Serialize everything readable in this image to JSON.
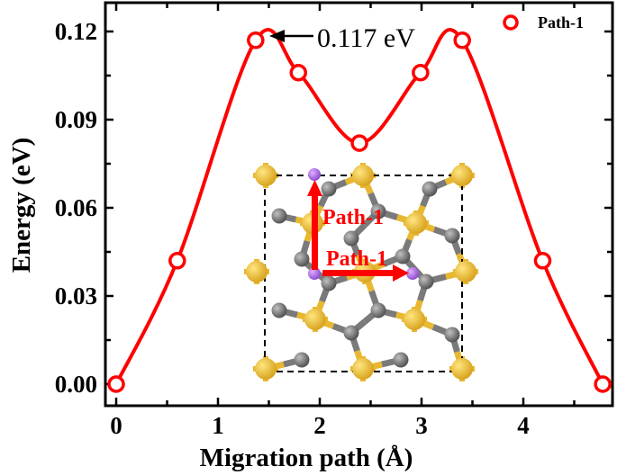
{
  "chart_data": {
    "type": "line",
    "title": "",
    "xlabel": "Migration path (Å)",
    "ylabel": "Energy (eV)",
    "xlim": [
      -0.1,
      4.88
    ],
    "ylim": [
      -0.0075,
      0.1295
    ],
    "x_ticks": [
      "0",
      "1",
      "2",
      "3",
      "4"
    ],
    "y_ticks": [
      "0.00",
      "0.03",
      "0.06",
      "0.09",
      "0.12"
    ],
    "grid": false,
    "legend_position": "upper right",
    "series": [
      {
        "name": "Path-1",
        "color": "#ff0000",
        "marker": "open-circle",
        "smooth": true,
        "x": [
          0.0,
          0.6,
          1.37,
          1.79,
          2.39,
          2.99,
          3.4,
          4.19,
          4.78
        ],
        "values": [
          0.0,
          0.042,
          0.117,
          0.106,
          0.082,
          0.106,
          0.117,
          0.042,
          0.0
        ]
      }
    ],
    "annotations": [
      {
        "text": "0.117 eV",
        "points_to": [
          1.37,
          0.117
        ],
        "arrow": true
      }
    ],
    "inset": {
      "description": "Atomic structure top view with dashed unit cell; red arrows mark migration paths",
      "labels": [
        "Path-1",
        "Path-1"
      ],
      "atom_colors": {
        "S": "#f0c040",
        "C": "#808080",
        "Li": "#b070e0"
      }
    }
  },
  "legend": {
    "label": "Path-1"
  },
  "annotation": {
    "label": "0.117 eV"
  },
  "inset": {
    "label_vertical": "Path-1",
    "label_horizontal": "Path-1"
  },
  "axes": {
    "xlabel": "Migration path (Å)",
    "ylabel": "Energy (eV)",
    "x_ticks": [
      "0",
      "1",
      "2",
      "3",
      "4"
    ],
    "y_ticks": [
      "0.00",
      "0.03",
      "0.06",
      "0.09",
      "0.12"
    ]
  },
  "colors": {
    "series": "#ff0000",
    "axis": "#000000"
  }
}
